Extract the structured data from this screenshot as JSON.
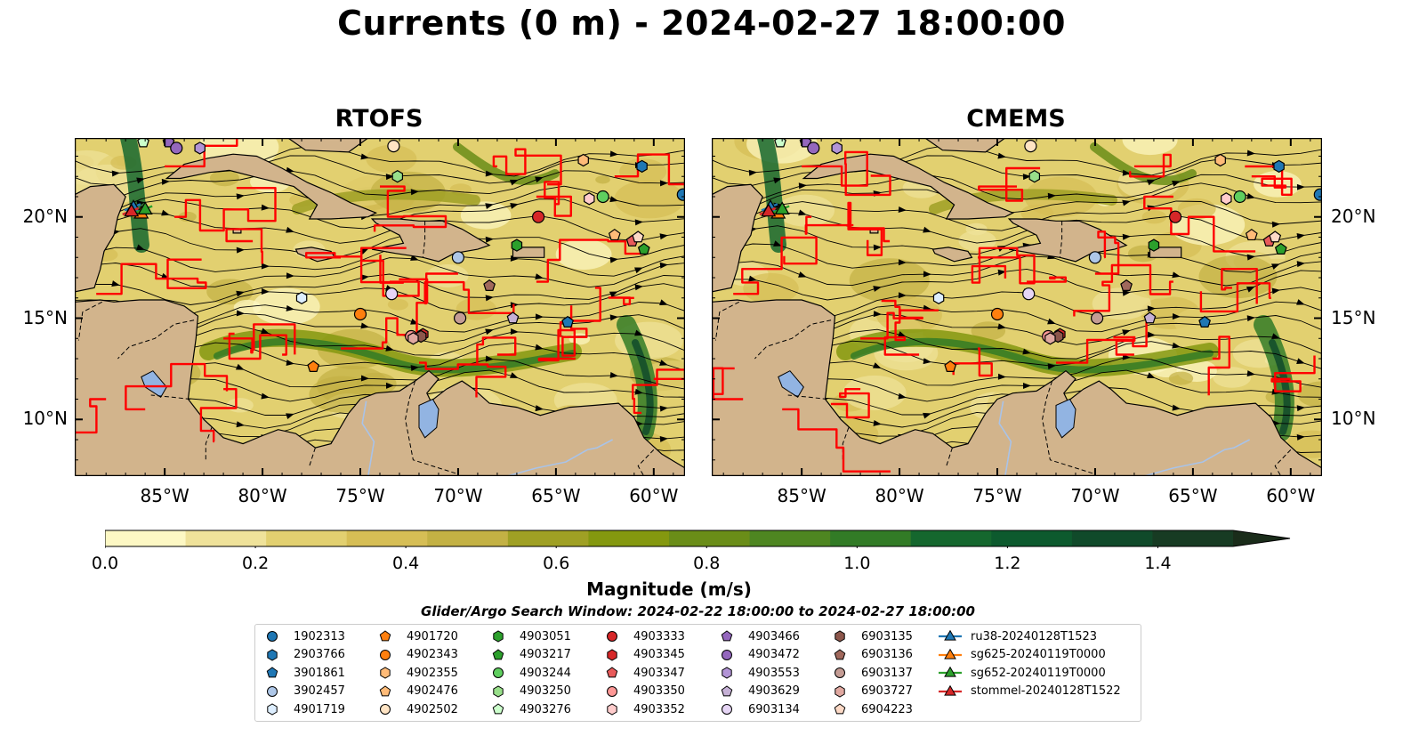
{
  "title": "Currents (0 m) - 2024-02-27 18:00:00",
  "panels": [
    {
      "title": "RTOFS"
    },
    {
      "title": "CMEMS"
    }
  ],
  "map_extent": {
    "lon_min": -89.6,
    "lon_max": -58.4,
    "lat_min": 7.2,
    "lat_max": 23.9
  },
  "lon_ticks": [
    "85°W",
    "80°W",
    "75°W",
    "70°W",
    "65°W",
    "60°W"
  ],
  "lon_values": [
    -85,
    -80,
    -75,
    -70,
    -65,
    -60
  ],
  "lat_ticks": [
    "20°N",
    "15°N",
    "10°N"
  ],
  "lat_values": [
    20,
    15,
    10
  ],
  "colorbar": {
    "label": "Magnitude (m/s)",
    "min": 0.0,
    "max": 1.5,
    "extend": "max",
    "ticks": [
      "0.0",
      "0.2",
      "0.4",
      "0.6",
      "0.8",
      "1.0",
      "1.2",
      "1.4"
    ],
    "colors": [
      "#fdf8c4",
      "#efe29a",
      "#e2d070",
      "#d6be55",
      "#c3b144",
      "#9fa024",
      "#84980f",
      "#6a8d18",
      "#4e8621",
      "#327b26",
      "#15672e",
      "#0d5a2e",
      "#104a2a",
      "#173b23",
      "#1a2c1a"
    ]
  },
  "colors": {
    "land": "#d2b48c",
    "lake": "#92b4e2",
    "river": "#a9c3e8",
    "tracks": "#ff0000",
    "streamlines": "#000000"
  },
  "legend": {
    "title": "Glider/Argo Search Window: 2024-02-22 18:00:00 to 2024-02-27 18:00:00",
    "items": [
      {
        "label": "1902313",
        "marker": "circle",
        "color": "#1f77b4"
      },
      {
        "label": "2903766",
        "marker": "hexagon",
        "color": "#1f77b4"
      },
      {
        "label": "3901861",
        "marker": "pentagon",
        "color": "#1f77b4"
      },
      {
        "label": "3902457",
        "marker": "circle",
        "color": "#aec7e8"
      },
      {
        "label": "4901719",
        "marker": "hexagon",
        "color": "#ddeeff"
      },
      {
        "label": "4901720",
        "marker": "pentagon",
        "color": "#ff7f0e"
      },
      {
        "label": "4902343",
        "marker": "circle",
        "color": "#ff7f0e"
      },
      {
        "label": "4902355",
        "marker": "hexagon",
        "color": "#ffbb78"
      },
      {
        "label": "4902476",
        "marker": "pentagon",
        "color": "#ffbb78"
      },
      {
        "label": "4902502",
        "marker": "circle",
        "color": "#ffe4c4"
      },
      {
        "label": "4903051",
        "marker": "hexagon",
        "color": "#2ca02c"
      },
      {
        "label": "4903217",
        "marker": "pentagon",
        "color": "#2ca02c"
      },
      {
        "label": "4903244",
        "marker": "circle",
        "color": "#5fcf5f"
      },
      {
        "label": "4903250",
        "marker": "hexagon",
        "color": "#98df8a"
      },
      {
        "label": "4903276",
        "marker": "pentagon",
        "color": "#ccffcc"
      },
      {
        "label": "4903333",
        "marker": "circle",
        "color": "#d62728"
      },
      {
        "label": "4903345",
        "marker": "hexagon",
        "color": "#d62728"
      },
      {
        "label": "4903347",
        "marker": "pentagon",
        "color": "#e85a5a"
      },
      {
        "label": "4903350",
        "marker": "circle",
        "color": "#ff9896"
      },
      {
        "label": "4903352",
        "marker": "hexagon",
        "color": "#ffcccc"
      },
      {
        "label": "4903466",
        "marker": "pentagon",
        "color": "#9467bd"
      },
      {
        "label": "4903472",
        "marker": "circle",
        "color": "#9467bd"
      },
      {
        "label": "4903553",
        "marker": "hexagon",
        "color": "#b294d6"
      },
      {
        "label": "4903629",
        "marker": "pentagon",
        "color": "#c5b0d5"
      },
      {
        "label": "6903134",
        "marker": "circle",
        "color": "#e6d5f5"
      },
      {
        "label": "6903135",
        "marker": "hexagon",
        "color": "#8c564b"
      },
      {
        "label": "6903136",
        "marker": "pentagon",
        "color": "#a0685c"
      },
      {
        "label": "6903137",
        "marker": "circle",
        "color": "#c49c94"
      },
      {
        "label": "6903727",
        "marker": "hexagon",
        "color": "#e0a8a0"
      },
      {
        "label": "6904223",
        "marker": "pentagon",
        "color": "#fcd9c6"
      },
      {
        "label": "ru38-20240128T1523",
        "marker": "triangle-line",
        "color": "#1f77b4"
      },
      {
        "label": "sg625-20240119T0000",
        "marker": "triangle-line",
        "color": "#ff7f0e"
      },
      {
        "label": "sg652-20240119T0000",
        "marker": "triangle-line",
        "color": "#2ca02c"
      },
      {
        "label": "stommel-20240128T1522",
        "marker": "triangle-line",
        "color": "#d62728"
      }
    ]
  },
  "floats": [
    {
      "id": "1902313",
      "lon": -58.5,
      "lat": 21.1
    },
    {
      "id": "2903766",
      "lon": -60.6,
      "lat": 22.5
    },
    {
      "id": "3901861",
      "lon": -64.4,
      "lat": 14.8
    },
    {
      "id": "3902457",
      "lon": -70.0,
      "lat": 18.0
    },
    {
      "id": "4901719",
      "lon": -78.0,
      "lat": 16.0
    },
    {
      "id": "4901720",
      "lon": -77.4,
      "lat": 12.6
    },
    {
      "id": "4902343",
      "lon": -75.0,
      "lat": 15.2
    },
    {
      "id": "4902355",
      "lon": -63.6,
      "lat": 22.8
    },
    {
      "id": "4902476",
      "lon": -62.0,
      "lat": 19.1
    },
    {
      "id": "4902502",
      "lon": -73.3,
      "lat": 23.5
    },
    {
      "id": "4903051",
      "lon": -67.0,
      "lat": 18.6
    },
    {
      "id": "4903217",
      "lon": -60.5,
      "lat": 18.4
    },
    {
      "id": "4903244",
      "lon": -62.6,
      "lat": 21.0
    },
    {
      "id": "4903250",
      "lon": -73.1,
      "lat": 22.0
    },
    {
      "id": "4903276",
      "lon": -86.1,
      "lat": 23.7
    },
    {
      "id": "4903333",
      "lon": -65.9,
      "lat": 20.0
    },
    {
      "id": "4903345",
      "lon": -71.8,
      "lat": 14.2
    },
    {
      "id": "4903347",
      "lon": -61.1,
      "lat": 18.8
    },
    {
      "id": "4903350",
      "lon": -72.4,
      "lat": 14.1
    },
    {
      "id": "4903352",
      "lon": -63.3,
      "lat": 20.9
    },
    {
      "id": "4903466",
      "lon": -84.8,
      "lat": 23.7
    },
    {
      "id": "4903472",
      "lon": -84.4,
      "lat": 23.4
    },
    {
      "id": "4903553",
      "lon": -83.2,
      "lat": 23.4
    },
    {
      "id": "4903629",
      "lon": -67.2,
      "lat": 15.0
    },
    {
      "id": "6903134",
      "lon": -73.4,
      "lat": 16.2
    },
    {
      "id": "6903135",
      "lon": -71.9,
      "lat": 14.1
    },
    {
      "id": "6903136",
      "lon": -68.4,
      "lat": 16.6
    },
    {
      "id": "6903137",
      "lon": -69.9,
      "lat": 15.0
    },
    {
      "id": "6903727",
      "lon": -72.3,
      "lat": 14.0
    },
    {
      "id": "6904223",
      "lon": -60.8,
      "lat": 19.0
    }
  ],
  "gliders": [
    {
      "id": "ru38-20240128T1523",
      "lon": -86.6,
      "lat": 20.5
    },
    {
      "id": "sg625-20240119T0000",
      "lon": -86.2,
      "lat": 20.2
    },
    {
      "id": "sg652-20240119T0000",
      "lon": -86.0,
      "lat": 20.4
    },
    {
      "id": "stommel-20240128T1522",
      "lon": -86.7,
      "lat": 20.3
    }
  ]
}
